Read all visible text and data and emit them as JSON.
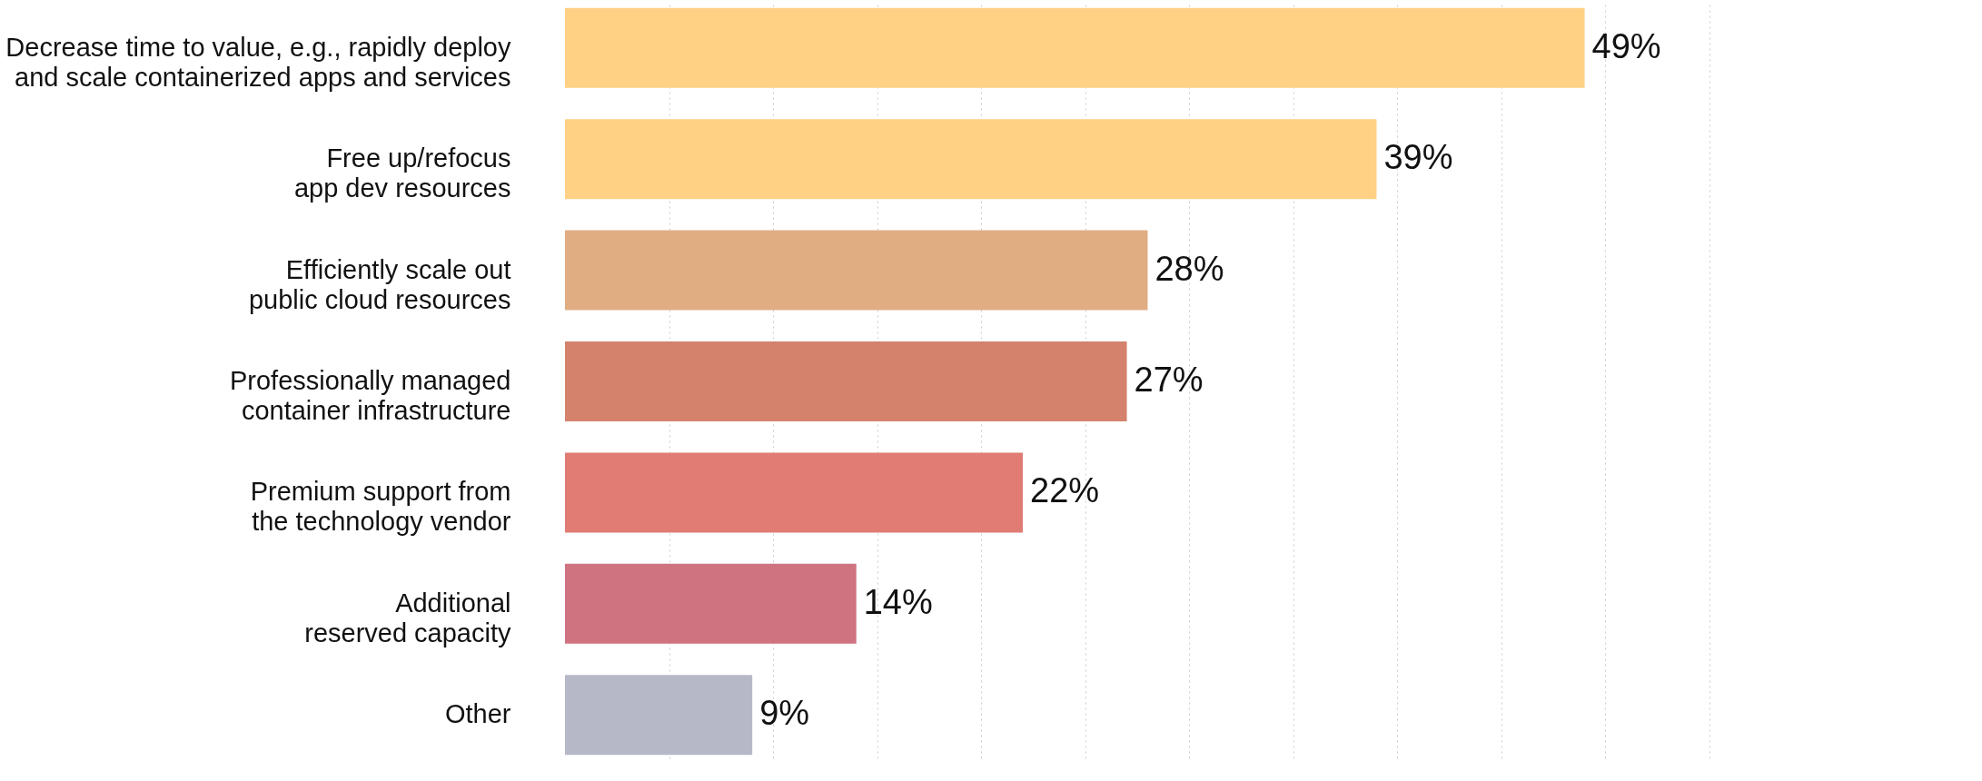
{
  "chart_data": {
    "type": "bar",
    "orientation": "horizontal",
    "categories": [
      "Decrease time to value, e.g., rapidly deploy and scale containerized apps and services",
      "Free up/refocus app dev resources",
      "Efficiently scale out public cloud resources",
      "Professionally managed container infrastructure",
      "Premium support from the technology vendor",
      "Additional reserved capacity",
      "Other"
    ],
    "values": [
      49,
      39,
      28,
      27,
      22,
      14,
      9
    ],
    "colors": [
      "#ffd185",
      "#ffd185",
      "#e0ad83",
      "#d4826c",
      "#e07c74",
      "#cf7380",
      "#b6b8c8"
    ],
    "value_labels": [
      "49%",
      "39%",
      "28%",
      "27%",
      "22%",
      "14%",
      "9%"
    ],
    "xlim": [
      0,
      55
    ],
    "xticks": [
      {
        "value": 5,
        "label": null
      },
      {
        "value": 10,
        "label": null
      },
      {
        "value": 15,
        "label": null
      },
      {
        "value": 20,
        "label": null
      },
      {
        "value": 25,
        "label": null
      },
      {
        "value": 30,
        "label": null
      },
      {
        "value": 35,
        "label": null
      },
      {
        "value": 40,
        "label": null
      },
      {
        "value": 45,
        "label": null
      },
      {
        "value": 50,
        "label": null
      },
      {
        "value": 55,
        "label": null
      }
    ],
    "grid": "x",
    "tick_labels": "y"
  }
}
